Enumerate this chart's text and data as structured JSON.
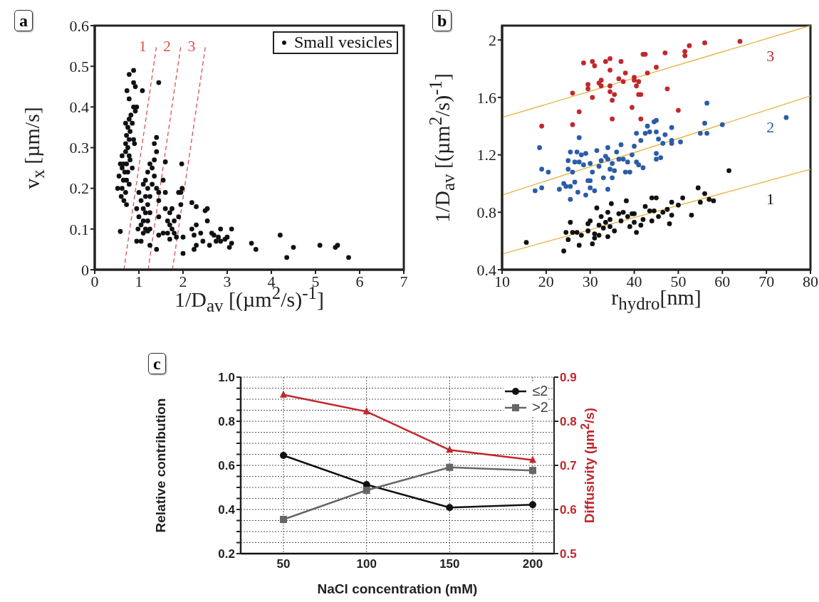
{
  "chart_data": [
    {
      "type": "scatter",
      "title": "a",
      "xlabel": "1/D$_{av}$ [(µm$^{2}$/s)$^{-1}$]",
      "ylabel": "v$_{x}$ [µm/s]",
      "xlim": [
        0,
        7
      ],
      "ylim": [
        0,
        0.6
      ],
      "xticks": [
        0,
        1,
        2,
        3,
        4,
        5,
        6,
        7
      ],
      "yticks": [
        0,
        0.1,
        0.2,
        0.3,
        0.4,
        0.5,
        0.6
      ],
      "legend": "top right",
      "marker": "circle",
      "series": [
        {
          "name": "Small vesicles",
          "color": "#111111",
          "x": [
            0.88,
            0.78,
            0.88,
            0.92,
            0.73,
            1.08,
            0.78,
            0.95,
            0.88,
            0.92,
            0.82,
            0.78,
            0.85,
            0.7,
            0.75,
            0.72,
            0.8,
            0.78,
            0.88,
            0.9,
            0.7,
            0.75,
            0.78,
            0.7,
            0.62,
            0.65,
            0.58,
            0.72,
            0.8,
            0.62,
            0.68,
            0.75,
            0.85,
            0.55,
            0.65,
            0.72,
            0.78,
            0.62,
            0.52,
            0.7,
            0.6,
            0.66,
            0.72,
            0.58,
            1.45,
            1.4,
            1.35,
            1.4,
            1.35,
            1.25,
            1.3,
            1.2,
            1.35,
            1.15,
            1.3,
            1.1,
            1.2,
            1.4,
            1.45,
            1.0,
            1.15,
            1.25,
            1.05,
            1.2,
            1.1,
            0.95,
            1.15,
            1.25,
            1.0,
            1.1,
            1.2,
            1.05,
            1.15,
            1.25,
            0.98,
            1.1,
            1.2,
            0.95,
            1.05,
            1.25,
            1.4,
            1.45,
            1.55,
            1.6,
            1.55,
            1.45,
            1.45,
            1.6,
            1.6,
            1.7,
            1.75,
            1.65,
            1.7,
            1.75,
            1.8,
            1.65,
            1.8,
            1.85,
            1.9,
            1.95,
            1.97,
            1.98,
            1.9,
            2.0,
            2.0,
            1.7,
            1.95,
            2.2,
            2.3,
            2.5,
            2.55,
            2.2,
            2.25,
            2.3,
            2.55,
            2.4,
            2.45,
            2.6,
            2.65,
            2.25,
            2.3,
            2.8,
            2.85,
            2.75,
            2.95,
            3.0,
            3.05,
            3.1,
            3.1,
            3.55,
            3.65,
            4.2,
            4.35,
            4.5,
            5.1,
            5.45,
            5.5,
            5.75,
            2.85,
            2.7
          ],
          "values": [
            0.49,
            0.48,
            0.46,
            0.45,
            0.44,
            0.44,
            0.42,
            0.4,
            0.4,
            0.39,
            0.38,
            0.37,
            0.36,
            0.36,
            0.35,
            0.33,
            0.34,
            0.32,
            0.32,
            0.31,
            0.31,
            0.3,
            0.28,
            0.29,
            0.28,
            0.26,
            0.26,
            0.26,
            0.27,
            0.25,
            0.24,
            0.24,
            0.25,
            0.23,
            0.22,
            0.22,
            0.21,
            0.2,
            0.2,
            0.19,
            0.18,
            0.17,
            0.16,
            0.094,
            0.46,
            0.325,
            0.31,
            0.29,
            0.27,
            0.26,
            0.25,
            0.24,
            0.23,
            0.22,
            0.21,
            0.21,
            0.2,
            0.2,
            0.19,
            0.19,
            0.18,
            0.18,
            0.17,
            0.16,
            0.15,
            0.15,
            0.14,
            0.14,
            0.13,
            0.12,
            0.12,
            0.11,
            0.1,
            0.1,
            0.1,
            0.09,
            0.095,
            0.07,
            0.07,
            0.06,
            0.05,
            0.085,
            0.09,
            0.265,
            0.22,
            0.17,
            0.13,
            0.19,
            0.15,
            0.14,
            0.15,
            0.12,
            0.11,
            0.1,
            0.12,
            0.09,
            0.09,
            0.08,
            0.19,
            0.16,
            0.26,
            0.2,
            0.13,
            0.08,
            0.04,
            0.075,
            0.19,
            0.165,
            0.155,
            0.145,
            0.15,
            0.1,
            0.085,
            0.11,
            0.12,
            0.09,
            0.07,
            0.06,
            0.09,
            0.05,
            0.06,
            0.08,
            0.1,
            0.07,
            0.075,
            0.08,
            0.055,
            0.065,
            0.1,
            0.065,
            0.05,
            0.085,
            0.03,
            0.055,
            0.06,
            0.055,
            0.06,
            0.03,
            0.07,
            0.085
          ]
        },
        {
          "name": "1",
          "type": "line",
          "line_style": "dashed",
          "marker": "none",
          "color": "#d9534f",
          "x": [
            0.66,
            1.4
          ],
          "values": [
            0,
            0.55
          ]
        },
        {
          "name": "2",
          "type": "line",
          "line_style": "dashed",
          "marker": "none",
          "color": "#d9534f",
          "x": [
            1.21,
            1.95
          ],
          "values": [
            0,
            0.55
          ]
        },
        {
          "name": "3",
          "type": "line",
          "line_style": "dashed",
          "marker": "none",
          "color": "#d9534f",
          "x": [
            1.76,
            2.51
          ],
          "values": [
            0,
            0.55
          ]
        }
      ]
    },
    {
      "type": "scatter",
      "title": "b",
      "xlabel": "r$_{hydro}$[nm]",
      "ylabel": "1/D$_{av}$ [(µm$^{2}$/s)$^{-1}$]",
      "xlim": [
        10,
        80
      ],
      "ylim": [
        0.4,
        2.1
      ],
      "xticks": [
        10,
        20,
        30,
        40,
        50,
        60,
        70,
        80
      ],
      "yticks": [
        0.4,
        0.8,
        1.2,
        1.6,
        2
      ],
      "marker": "circle",
      "series": [
        {
          "name": "1",
          "color": "#111111",
          "x": [
            15.5,
            24,
            24.5,
            25,
            25.5,
            26,
            27,
            27.5,
            28,
            29.5,
            30,
            29.5,
            30.5,
            31,
            31,
            32,
            31.5,
            32,
            32.5,
            33,
            33.5,
            34,
            34,
            34.5,
            34.8,
            34.5,
            35.5,
            36.5,
            37,
            37.5,
            38.2,
            38.5,
            39,
            39.5,
            40,
            40.5,
            40,
            41.5,
            42,
            42.5,
            43.5,
            44,
            44,
            45,
            44.5,
            45.5,
            46.5,
            47.5,
            48,
            48.5,
            48.5,
            50,
            51,
            53,
            54.5,
            55,
            56,
            57,
            58,
            61.5
          ],
          "values": [
            0.59,
            0.53,
            0.66,
            0.61,
            0.73,
            0.66,
            0.66,
            0.57,
            0.64,
            0.72,
            0.74,
            0.67,
            0.58,
            0.62,
            0.65,
            0.64,
            0.83,
            0.71,
            0.77,
            0.69,
            0.73,
            0.63,
            0.8,
            0.75,
            0.86,
            0.7,
            0.67,
            0.79,
            0.74,
            0.8,
            0.88,
            0.77,
            0.7,
            0.79,
            0.73,
            0.66,
            0.79,
            0.71,
            0.75,
            0.84,
            0.81,
            0.74,
            0.9,
            0.9,
            0.81,
            0.77,
            0.8,
            0.82,
            0.72,
            0.78,
            0.87,
            0.85,
            0.9,
            0.78,
            0.97,
            0.87,
            0.93,
            0.89,
            0.88,
            1.09
          ]
        },
        {
          "name": "2",
          "color": "#2b5ca8",
          "x": [
            17.5,
            18.5,
            19,
            19,
            20.5,
            23,
            24,
            24.5,
            25,
            25,
            25.5,
            25.5,
            25.5,
            26,
            26.5,
            26.5,
            27,
            27.5,
            27.5,
            27.2,
            28,
            28.5,
            29,
            29,
            29.5,
            30,
            30,
            30,
            30.5,
            31,
            31.5,
            32,
            32.5,
            33,
            33.5,
            34,
            34,
            34.5,
            34,
            35,
            35,
            35.5,
            36,
            36.5,
            37,
            37.5,
            38,
            38.5,
            39,
            39.5,
            40,
            40.5,
            40.5,
            41,
            41.5,
            42,
            42.5,
            43,
            43.5,
            44.5,
            45,
            45,
            45,
            45,
            45.5,
            46,
            46.5,
            47,
            48.5,
            48.5,
            48.5,
            50.5,
            55,
            56,
            56.5,
            56.5,
            60,
            74.5
          ],
          "values": [
            0.95,
            1.25,
            1.1,
            0.97,
            1.08,
            0.96,
            1.0,
            0.98,
            1.16,
            1.1,
            0.98,
            1.22,
            0.89,
            1.08,
            1.01,
            1.15,
            1.22,
            1.15,
            1.32,
            0.94,
            1.2,
            1.13,
            1.21,
            0.92,
            1.02,
            1.02,
            0.97,
            1.14,
            1.08,
            0.95,
            1.23,
            1.12,
            1.16,
            1.04,
            1.19,
            1.25,
            1.17,
            1.1,
            0.96,
            1.14,
            1.04,
            1.09,
            1.22,
            1.17,
            1.27,
            1.17,
            1.08,
            1.15,
            1.08,
            1.2,
            1.26,
            1.35,
            1.15,
            1.13,
            1.3,
            1.11,
            1.35,
            1.4,
            1.36,
            1.43,
            1.44,
            1.36,
            1.21,
            1.17,
            1.31,
            1.18,
            1.28,
            1.34,
            1.39,
            1.3,
            1.28,
            1.29,
            1.35,
            1.42,
            1.56,
            1.35,
            1.41,
            1.46
          ]
        },
        {
          "name": "3",
          "color": "#c0282d",
          "x": [
            19,
            26,
            26,
            27.5,
            28.5,
            29.5,
            29.5,
            30.5,
            30.5,
            31,
            32,
            32.5,
            32.5,
            33.5,
            34.5,
            34.5,
            34.5,
            34.5,
            35,
            35,
            35.5,
            36.5,
            37,
            37.5,
            38,
            39.5,
            40,
            40,
            40.5,
            41,
            41,
            41.5,
            41.5,
            42,
            42.5,
            43,
            45,
            47,
            47.5,
            50,
            51.5,
            51.5,
            52.5,
            56,
            64
          ],
          "values": [
            1.4,
            1.41,
            1.63,
            1.5,
            1.84,
            1.66,
            1.69,
            1.85,
            1.6,
            1.82,
            1.7,
            1.72,
            1.68,
            1.85,
            1.68,
            1.79,
            1.87,
            1.64,
            1.58,
            1.45,
            1.62,
            1.73,
            1.85,
            1.71,
            1.77,
            1.53,
            1.74,
            1.72,
            1.68,
            1.62,
            1.71,
            1.45,
            1.62,
            1.9,
            1.9,
            1.77,
            1.81,
            1.91,
            1.66,
            1.51,
            1.92,
            1.89,
            1.96,
            1.98,
            1.99
          ]
        },
        {
          "type": "line",
          "marker": "none",
          "color": "#e2b33c",
          "x": [
            10,
            80
          ],
          "values": [
            0.51,
            1.1
          ]
        },
        {
          "type": "line",
          "marker": "none",
          "color": "#e2b33c",
          "x": [
            10,
            80
          ],
          "values": [
            0.92,
            1.61
          ]
        },
        {
          "type": "line",
          "marker": "none",
          "color": "#e2b33c",
          "x": [
            10,
            80
          ],
          "values": [
            1.46,
            2.1
          ]
        }
      ]
    },
    {
      "type": "line",
      "title": "c",
      "xlabel": "NaCl concentration (mM)",
      "ylabel": "Relative contribution",
      "y2label": "Diffusivity (µm$^{2}$/s)",
      "categories": [
        "50",
        "100",
        "150",
        "200"
      ],
      "ylim": [
        0.2,
        1.0
      ],
      "yticks": [
        0.2,
        {
          "value": 0.25,
          "label": null
        },
        {
          "value": 0.3,
          "label": null
        },
        {
          "value": 0.35,
          "label": null
        },
        0.4,
        {
          "value": 0.45,
          "label": null
        },
        {
          "value": 0.5,
          "label": null
        },
        {
          "value": 0.55,
          "label": null
        },
        0.6,
        {
          "value": 0.65,
          "label": null
        },
        {
          "value": 0.7,
          "label": null
        },
        {
          "value": 0.75,
          "label": null
        },
        0.8,
        {
          "value": 0.85,
          "label": null
        },
        {
          "value": 0.9,
          "label": null
        },
        {
          "value": 0.95,
          "label": null
        },
        {
          "value": 1.0,
          "label": "1.0"
        }
      ],
      "y2lim": [
        0.5,
        0.9
      ],
      "y2ticks": [
        0.5,
        0.6,
        0.7,
        0.8,
        0.9
      ],
      "grid": true,
      "legend": "top right",
      "series": [
        {
          "name": "≤2",
          "color": "#111111",
          "marker": "circle",
          "values": [
            0.645,
            0.513,
            0.409,
            0.422
          ]
        },
        {
          "name": ">2",
          "color": "#666666",
          "marker": "square",
          "values": [
            0.355,
            0.487,
            0.591,
            0.577
          ]
        },
        {
          "color": "#c0282d",
          "marker": "triangle",
          "axis": "y2",
          "values": [
            0.86,
            0.822,
            0.735,
            0.712
          ]
        }
      ]
    }
  ]
}
